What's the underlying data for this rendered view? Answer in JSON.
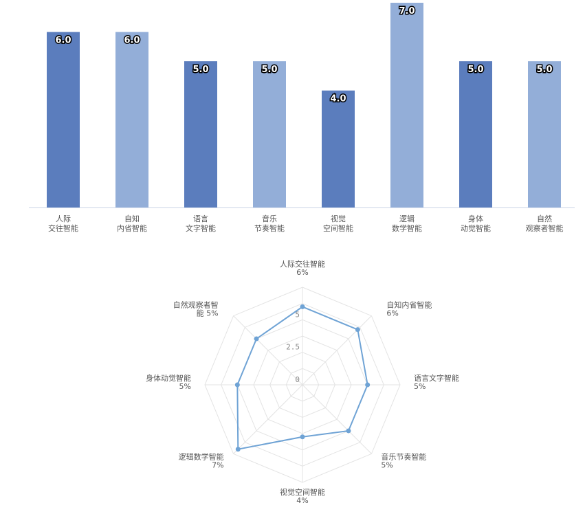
{
  "chart_data": [
    {
      "type": "bar",
      "categories": [
        [
          "人际",
          "交往智能"
        ],
        [
          "自知",
          "内省智能"
        ],
        [
          "语言",
          "文字智能"
        ],
        [
          "音乐",
          "节奏智能"
        ],
        [
          "视觉",
          "空间智能"
        ],
        [
          "逻辑",
          "数学智能"
        ],
        [
          "身体",
          "动觉智能"
        ],
        [
          "自然",
          "观察者智能"
        ]
      ],
      "values": [
        6.0,
        6.0,
        5.0,
        5.0,
        4.0,
        7.0,
        5.0,
        5.0
      ],
      "data_labels": [
        "6.0",
        "6.0",
        "5.0",
        "5.0",
        "4.0",
        "7.0",
        "5.0",
        "5.0"
      ],
      "ylim": [
        0,
        7.0
      ],
      "colors": [
        "#5b7dbd",
        "#93aed8"
      ],
      "axis_color": "#c8d3e6",
      "title": "",
      "xlabel": "",
      "ylabel": "",
      "grid": false,
      "legend": "none"
    },
    {
      "type": "radar",
      "axes": [
        [
          "人际交往智能",
          "6%"
        ],
        [
          "自知内省智能",
          "6%"
        ],
        [
          "语言文字智能",
          "5%"
        ],
        [
          "音乐节奏智能",
          "5%"
        ],
        [
          "视觉空间智能",
          "4%"
        ],
        [
          "逻辑数学智能",
          "7%"
        ],
        [
          "身体动觉智能",
          "5%"
        ],
        [
          "自然观察者智",
          "能 5%"
        ]
      ],
      "values": [
        6,
        6,
        5,
        5,
        4,
        7,
        5,
        5
      ],
      "rmax": 7.5,
      "tick_values": [
        0,
        2.5,
        5
      ],
      "tick_labels": [
        "0",
        "2.5",
        "5"
      ],
      "line_color": "#6fa3d5",
      "grid_color": "#e3e3e3",
      "title": "",
      "grid": true,
      "legend": "none"
    }
  ]
}
